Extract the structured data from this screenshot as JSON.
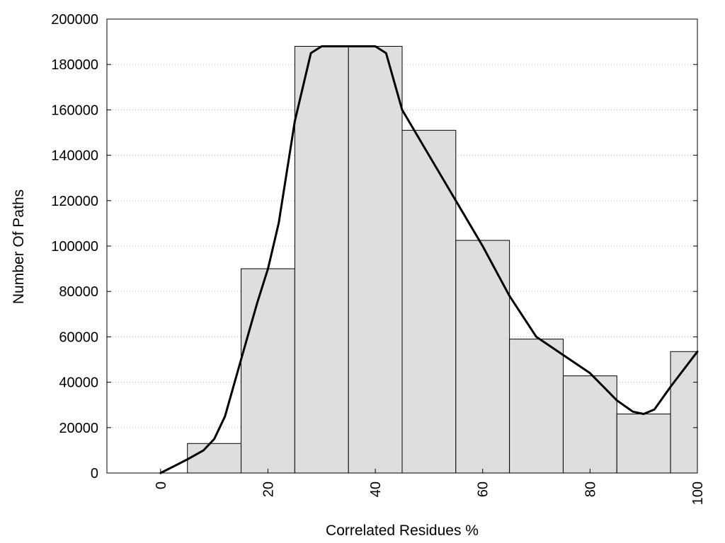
{
  "chart_data": {
    "type": "bar",
    "title": "",
    "xlabel": "Correlated Residues %",
    "ylabel": "Number Of Paths",
    "xlim": [
      -10,
      100
    ],
    "ylim": [
      0,
      200000
    ],
    "x_ticks": [
      0,
      20,
      40,
      60,
      80,
      100
    ],
    "y_ticks": [
      0,
      20000,
      40000,
      60000,
      80000,
      100000,
      120000,
      140000,
      160000,
      180000,
      200000
    ],
    "grid": "horizontal dotted",
    "legend": "none",
    "bin_width": 10,
    "categories": [
      0,
      10,
      20,
      30,
      40,
      50,
      60,
      70,
      80,
      90,
      100
    ],
    "values": [
      0,
      13000,
      90000,
      188000,
      188000,
      151000,
      102500,
      59000,
      42800,
      26000,
      53500
    ],
    "smoothed_curve": {
      "x": [
        0,
        5,
        8,
        10,
        12,
        15,
        18,
        20,
        22,
        25,
        28,
        30,
        35,
        40,
        42,
        45,
        50,
        55,
        60,
        65,
        70,
        75,
        80,
        85,
        88,
        90,
        92,
        95,
        100
      ],
      "y": [
        0,
        6000,
        10000,
        15000,
        25000,
        50000,
        75000,
        90000,
        110000,
        155000,
        185000,
        188000,
        188000,
        188000,
        185000,
        160000,
        140000,
        120000,
        100000,
        78000,
        60000,
        52000,
        44000,
        32000,
        27000,
        26000,
        28000,
        38000,
        53500
      ]
    },
    "colors": {
      "bar_fill": "#dedede",
      "bar_stroke": "#000000",
      "curve": "#000000",
      "grid": "#bbbbbb"
    }
  }
}
